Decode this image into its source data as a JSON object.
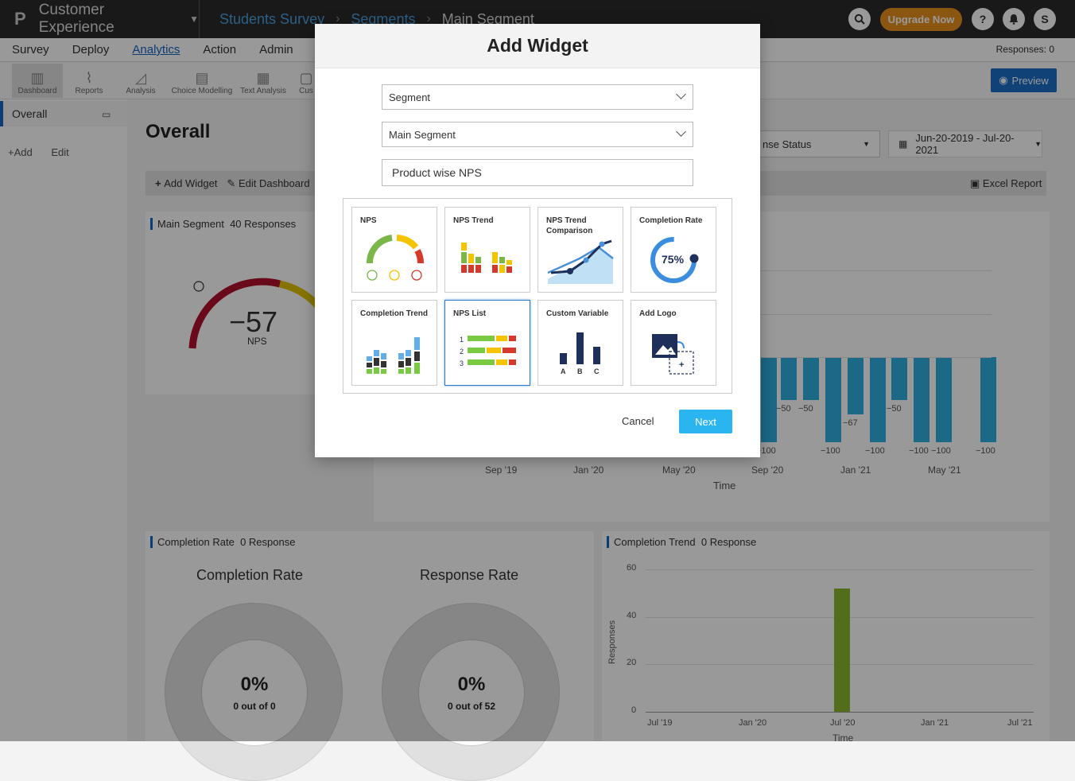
{
  "brand": {
    "name": "Customer Experience"
  },
  "breadcrumb": [
    "Students Survey",
    "Segments",
    "Main Segment"
  ],
  "upgrade_label": "Upgrade Now",
  "avatar_letter": "S",
  "menu": [
    "Survey",
    "Deploy",
    "Analytics",
    "Action",
    "Admin"
  ],
  "responses_label": "Responses: 0",
  "tools": [
    "Dashboard",
    "Reports",
    "Analysis",
    "Choice Modelling",
    "Text Analysis",
    "Cus"
  ],
  "preview_label": "Preview",
  "sidebar": {
    "item": "Overall",
    "add": "+Add",
    "edit": "Edit"
  },
  "main": {
    "title": "Overall",
    "add_widget": "Add Widget",
    "edit_dashboard": "Edit Dashboard",
    "excel_report": "Excel Report",
    "filter_status": "nse Status",
    "date_range": "Jun-20-2019 - Jul-20-2021"
  },
  "nps_card": {
    "segment": "Main Segment",
    "responses": "40 Responses",
    "score": "−57",
    "label": "NPS"
  },
  "trend_chart": {
    "bar_labels": [
      "−100",
      "−50",
      "−50",
      "−100",
      "−67",
      "−100",
      "−50",
      "−100",
      "−100",
      "−100"
    ],
    "ticks": [
      "Sep '19",
      "Jan '20",
      "May '20",
      "Sep '20",
      "Jan '21",
      "May '21"
    ],
    "xlabel": "Time"
  },
  "completion_card": {
    "title": "Completion Rate",
    "responses": "0 Response",
    "cr_heading": "Completion Rate",
    "rr_heading": "Response Rate",
    "cr_pct": "0%",
    "cr_sub": "0 out of 0",
    "rr_pct": "0%",
    "rr_sub": "0 out of 52"
  },
  "completion_trend": {
    "title": "Completion Trend",
    "responses": "0 Response",
    "ylabel": "Responses",
    "xlabel": "Time",
    "y_ticks": [
      "60",
      "40",
      "20",
      "0"
    ],
    "x_ticks": [
      "Jul '19",
      "Jan '20",
      "Jul '20",
      "Jan '21",
      "Jul '21"
    ]
  },
  "chart_data": {
    "type": "bar",
    "title": "Completion Trend",
    "xlabel": "Time",
    "ylabel": "Responses",
    "ylim": [
      0,
      60
    ],
    "categories": [
      "Jul '20"
    ],
    "values": [
      52
    ]
  },
  "modal": {
    "title": "Add Widget",
    "select1": "Segment",
    "select2": "Main Segment",
    "name_value": "Product wise NPS",
    "tiles": [
      "NPS",
      "NPS Trend",
      "NPS Trend Comparison",
      "Completion Rate",
      "Completion Trend",
      "NPS List",
      "Custom Variable",
      "Add Logo"
    ],
    "completion_pct": "75%",
    "nps_list_numbers": [
      "1",
      "2",
      "3"
    ],
    "custom_var_letters": [
      "A",
      "B",
      "C"
    ],
    "cancel": "Cancel",
    "next": "Next"
  }
}
